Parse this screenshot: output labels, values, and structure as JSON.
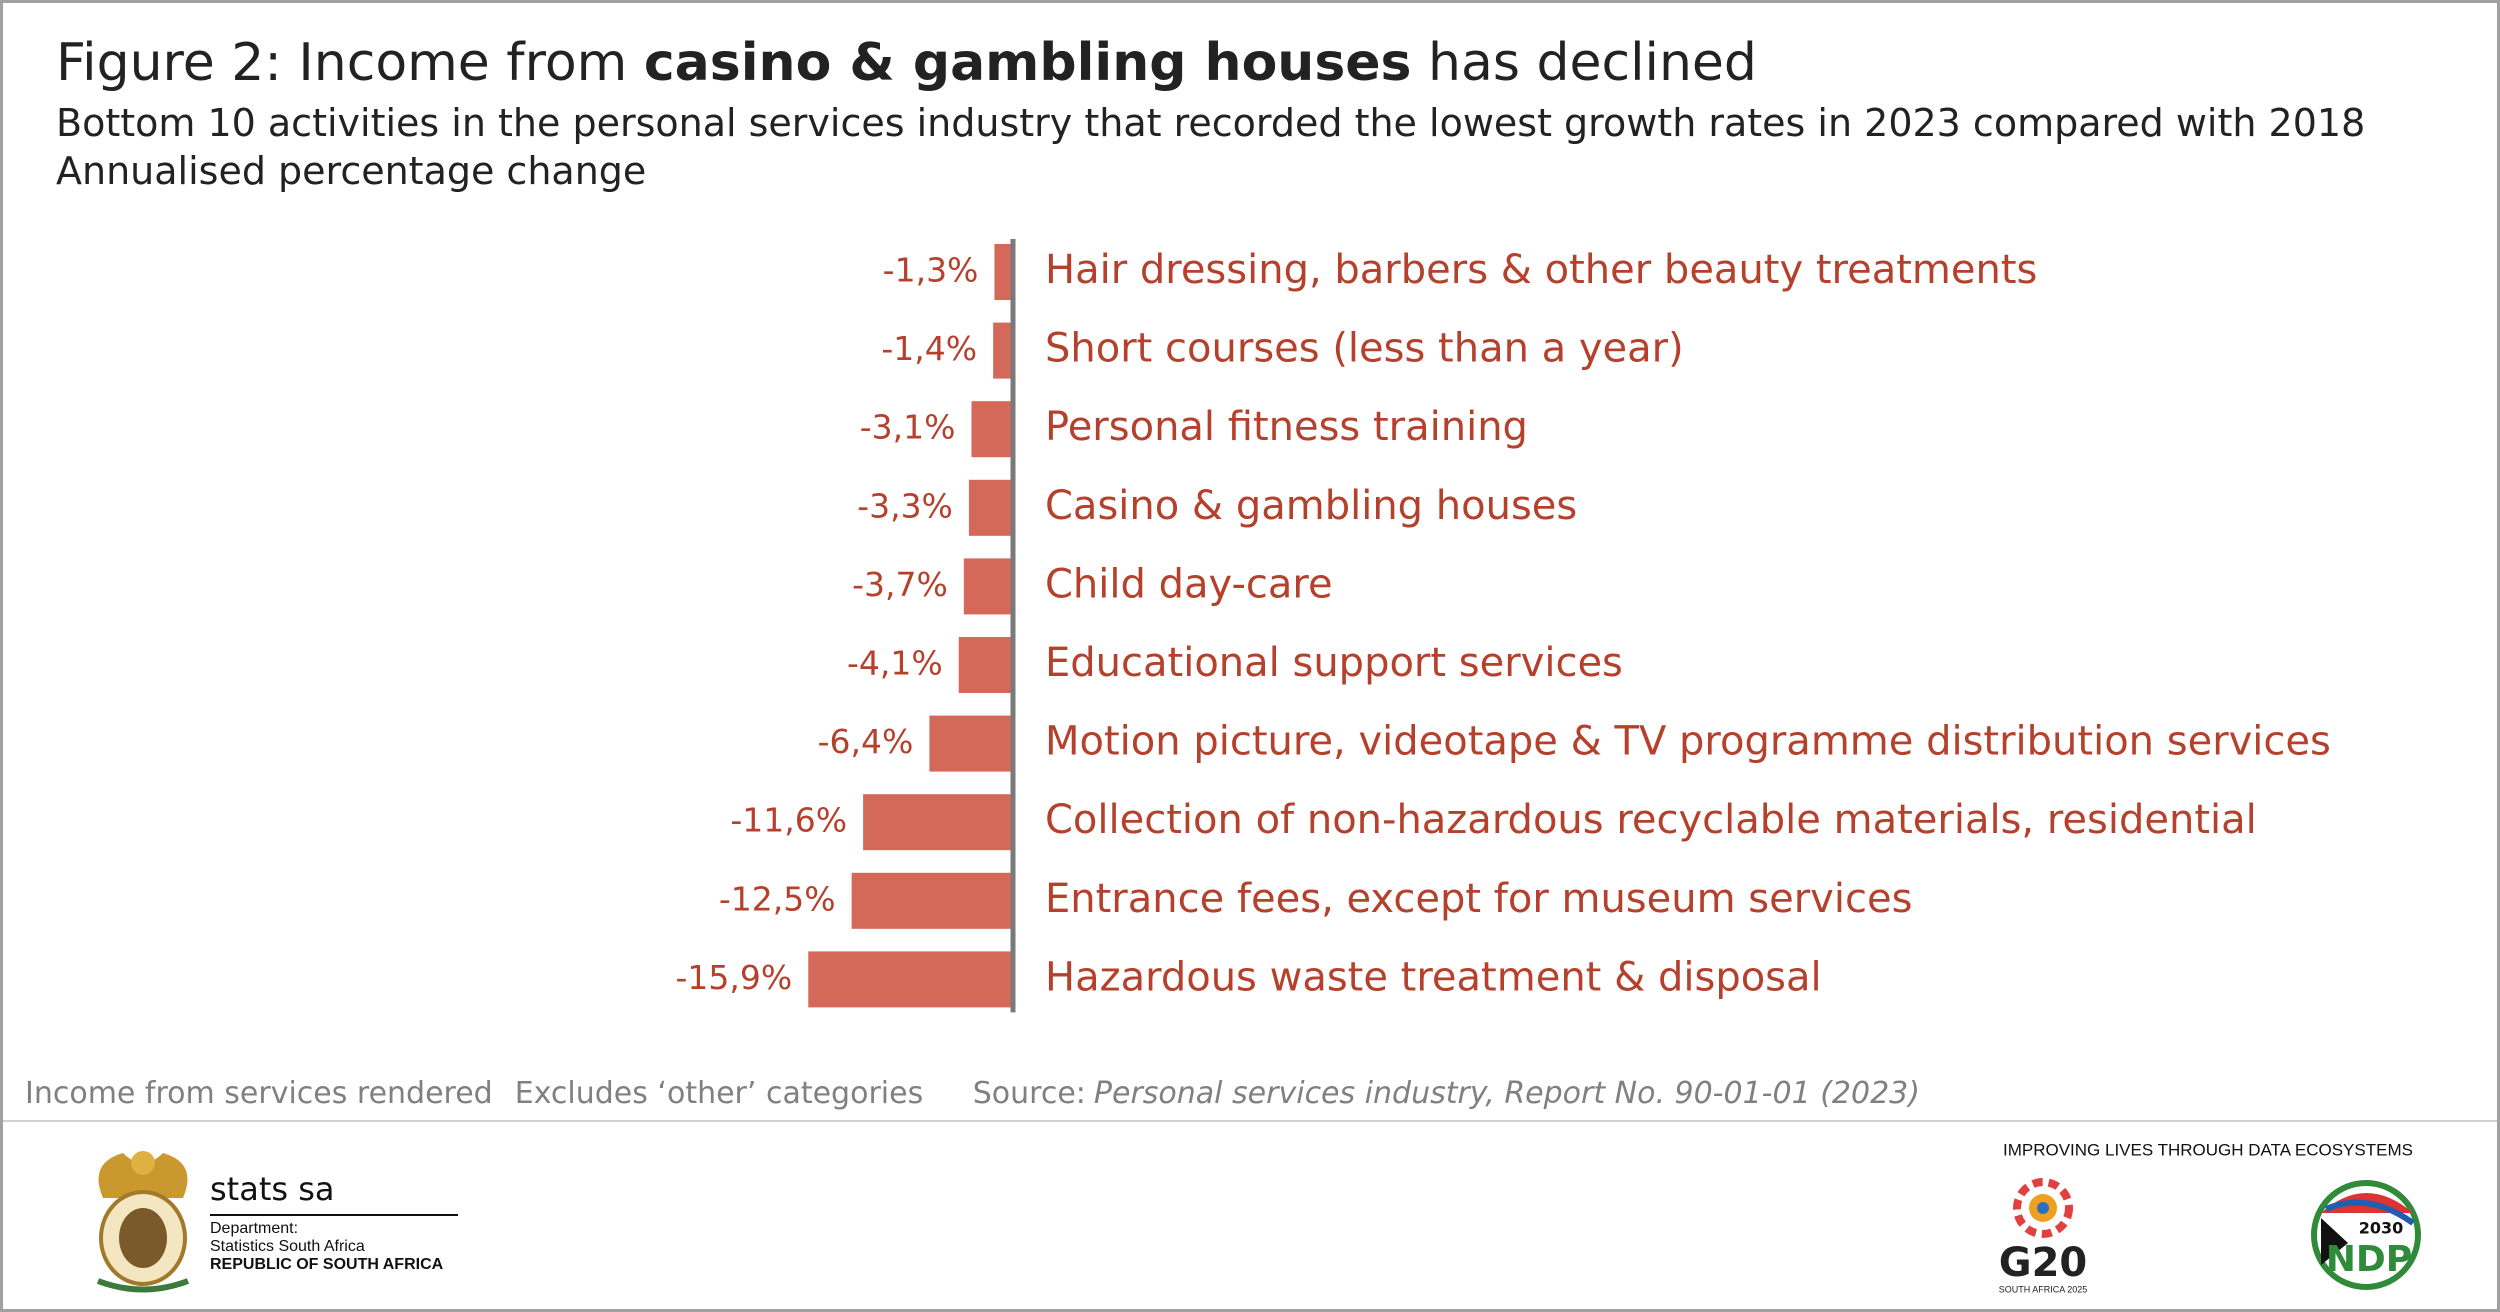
{
  "chart_data": {
    "type": "bar",
    "orientation": "horizontal",
    "title_parts": [
      "Figure 2: Income from",
      "casino & gambling houses",
      "has declined"
    ],
    "subtitle": "Bottom 10 activities in the personal services industry that recorded the lowest growth rates in 2023 compared with 2018",
    "y_label": "Annualised percentage change",
    "categories": [
      "Hair dressing, barbers & other beauty treatments",
      "Short courses (less than a year)",
      "Personal fitness training",
      "Casino & gambling houses",
      "Child day-care",
      "Educational support services",
      "Motion picture, videotape & TV programme distribution services",
      "Collection of non-hazardous recyclable materials, residential",
      "Entrance fees, except for museum services",
      "Hazardous waste treatment & disposal"
    ],
    "values": [
      -1.3,
      -1.4,
      -3.1,
      -3.3,
      -3.7,
      -4.1,
      -6.4,
      -11.6,
      -12.5,
      -15.9
    ],
    "value_labels": [
      "-1,3%",
      "-1,4%",
      "-3,1%",
      "-3,3%",
      "-3,7%",
      "-4,1%",
      "-6,4%",
      "-11,6%",
      "-12,5%",
      "-15,9%"
    ],
    "color": "#d4695a",
    "label_color": "#b5412c",
    "notes": [
      "Income from services rendered",
      "Excludes ‘other’ categories"
    ],
    "source_label": "Source:",
    "source": "Personal services industry, Report No. 90-01-01 (2023)"
  },
  "footer": {
    "brand": "stats sa",
    "dept": "Department:",
    "org": "Statistics South Africa",
    "country": "REPUBLIC OF SOUTH AFRICA",
    "tagline": "IMPROVING LIVES THROUGH DATA ECOSYSTEMS",
    "g20": "G20",
    "g20_sub": "SOUTH AFRICA 2025",
    "ndp": "NDP",
    "ndp_year": "2030"
  }
}
